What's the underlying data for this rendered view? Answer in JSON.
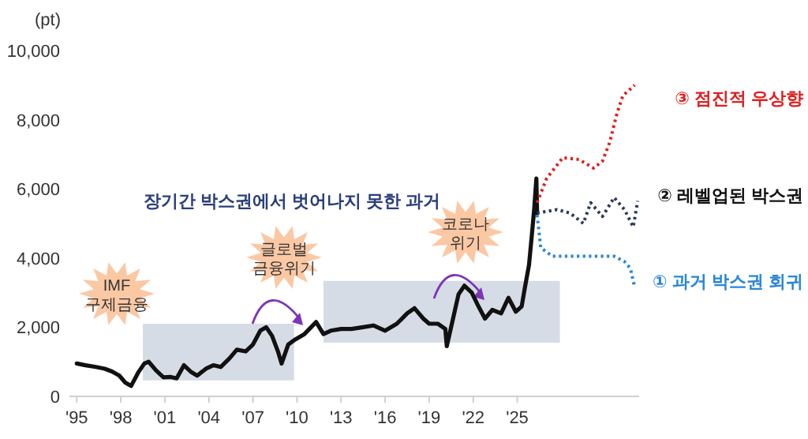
{
  "chart_data": {
    "type": "line",
    "ylabel": "(pt)",
    "xlim": [
      1994.5,
      2033.3
    ],
    "ylim": [
      0,
      10000
    ],
    "xticks": [
      {
        "value": 1995,
        "label": "'95"
      },
      {
        "value": 1998,
        "label": "'98"
      },
      {
        "value": 2001,
        "label": "'01"
      },
      {
        "value": 2004,
        "label": "'04"
      },
      {
        "value": 2007,
        "label": "'07"
      },
      {
        "value": 2010,
        "label": "'10"
      },
      {
        "value": 2013,
        "label": "'13"
      },
      {
        "value": 2016,
        "label": "'16"
      },
      {
        "value": 2019,
        "label": "'19"
      },
      {
        "value": 2022,
        "label": "'22"
      },
      {
        "value": 2025,
        "label": "'25"
      }
    ],
    "yticks": [
      0,
      {
        "value": 2000,
        "label": "2,000"
      },
      {
        "value": 4000,
        "label": "4,000"
      },
      {
        "value": 6000,
        "label": "6,000"
      },
      {
        "value": 8000,
        "label": "8,000"
      },
      {
        "value": 10000,
        "label": "10,000"
      }
    ],
    "grid": false,
    "line_style": "solid",
    "marker": "none",
    "annotations": [
      "IMF\n구제금융",
      "글로벌\n금융위기",
      "코로나\n위기",
      "장기간 박스권에서 벗어나지 못한 과거"
    ],
    "series": [
      {
        "color": "#d6dce6",
        "x": [
          1999.5,
          2009.8
        ],
        "values": [
          null,
          null
        ],
        "lower": [
          460,
          460
        ],
        "upper": [
          2100,
          2100
        ]
      },
      {
        "color": "#d6dce6",
        "x": [
          2011.8,
          2027.9
        ],
        "values": [
          null,
          null
        ],
        "lower": [
          1550,
          1550
        ],
        "upper": [
          3340,
          3340
        ]
      },
      {
        "color": "#111111",
        "x": [
          1995,
          1995.6,
          1996.3,
          1996.9,
          1997.4,
          1997.9,
          1998.3,
          1998.7,
          1999.2,
          1999.6,
          1999.9,
          2000.4,
          2000.9,
          2001.4,
          2001.8,
          2002.3,
          2002.8,
          2003.2,
          2003.8,
          2004.3,
          2004.8,
          2005.4,
          2005.9,
          2006.5,
          2007.0,
          2007.5,
          2007.9,
          2008.3,
          2008.7,
          2008.95,
          2009.4,
          2009.9,
          2010.5,
          2011.3,
          2011.8,
          2012.3,
          2013.0,
          2013.7,
          2014.5,
          2015.2,
          2016.0,
          2016.8,
          2017.5,
          2018.0,
          2018.6,
          2019.0,
          2019.6,
          2020.1,
          2020.2,
          2020.6,
          2021.0,
          2021.4,
          2021.9,
          2022.3,
          2022.8,
          2023.3,
          2023.9,
          2024.4,
          2024.9,
          2025.3,
          2025.5,
          2025.8,
          2026.0,
          2026.15,
          2026.3,
          2026.35
        ],
        "values": [
          950,
          900,
          850,
          800,
          720,
          600,
          400,
          300,
          700,
          950,
          1000,
          750,
          550,
          560,
          520,
          900,
          700,
          600,
          800,
          900,
          850,
          1100,
          1350,
          1300,
          1500,
          1900,
          2000,
          1750,
          1300,
          950,
          1500,
          1650,
          1800,
          2150,
          1800,
          1900,
          1950,
          1950,
          2000,
          2050,
          1900,
          2100,
          2400,
          2550,
          2250,
          2100,
          2100,
          1950,
          1450,
          2200,
          2950,
          3200,
          3000,
          2650,
          2250,
          2500,
          2400,
          2850,
          2450,
          2600,
          3100,
          3800,
          4700,
          5400,
          6300,
          5300
        ]
      },
      {
        "name": "③ 점진적 우상향",
        "color": "#e02020",
        "line_style": "dotted",
        "x": [
          2026.35,
          2027.0,
          2028.1,
          2029.2,
          2030.2,
          2030.8,
          2031.3,
          2031.8,
          2032.2,
          2033.0
        ],
        "values": [
          5600,
          6300,
          6900,
          6850,
          6600,
          6800,
          7350,
          8200,
          8700,
          9000
        ]
      },
      {
        "name": "② 레벨업된 박스권",
        "color": "#2b3a55",
        "line_style": "dotted",
        "x": [
          2026.35,
          2027.0,
          2027.7,
          2028.6,
          2029.5,
          2030.0,
          2030.8,
          2031.6,
          2032.3,
          2032.9,
          2033.2
        ],
        "values": [
          5300,
          5350,
          5400,
          5300,
          5000,
          5600,
          5200,
          5750,
          5400,
          4900,
          5650
        ]
      },
      {
        "name": "① 과거 박스권 회귀",
        "color": "#2a86d8",
        "line_style": "dotted",
        "x": [
          2026.35,
          2026.6,
          2027.4,
          2029.0,
          2030.5,
          2031.6,
          2032.3,
          2032.7,
          2033.0
        ],
        "values": [
          5250,
          4300,
          4050,
          4050,
          4050,
          4050,
          3900,
          3700,
          3150
        ]
      }
    ]
  }
}
